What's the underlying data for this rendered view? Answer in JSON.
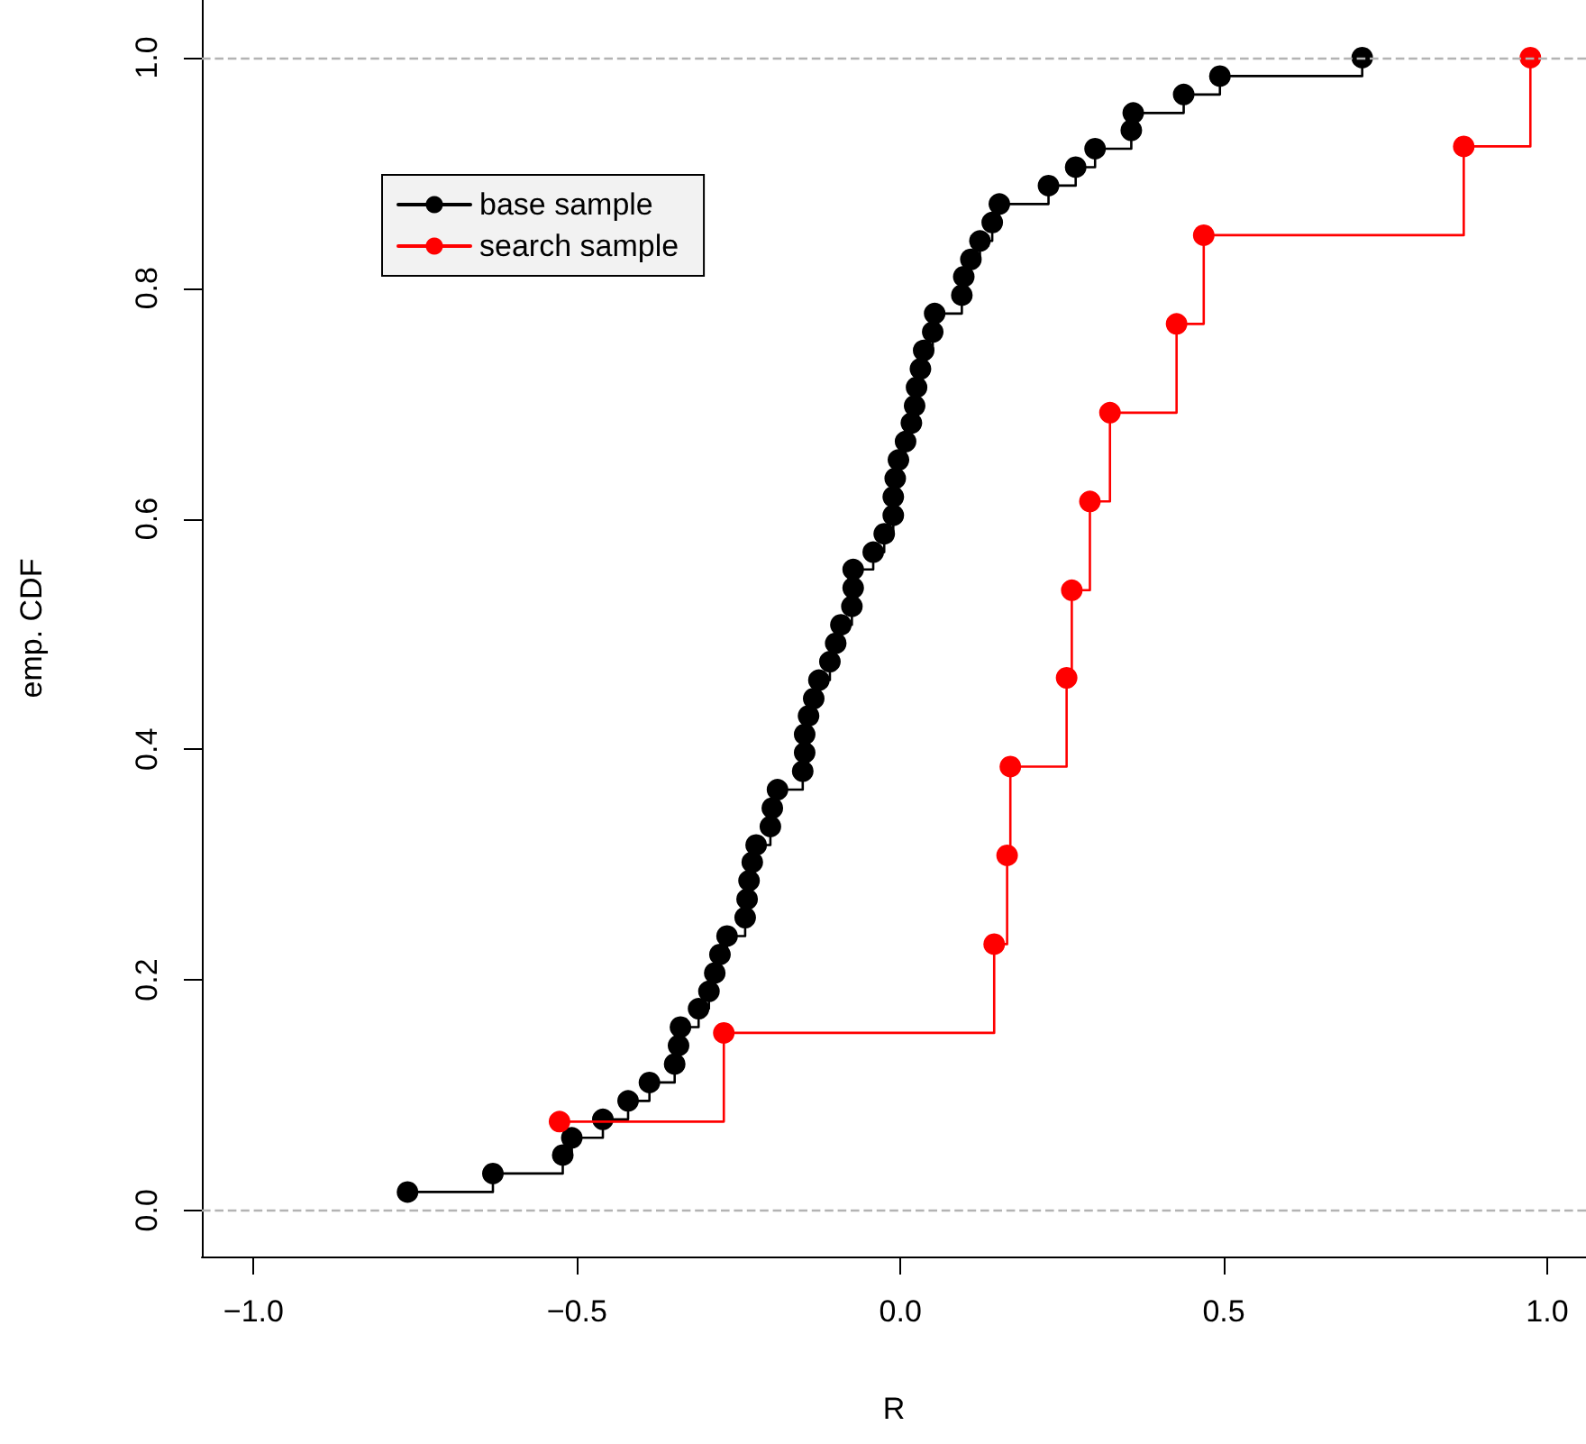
{
  "chart_data": {
    "type": "step",
    "xlabel": "R",
    "ylabel": "emp. CDF",
    "xlim": [
      -1.08,
      1.06
    ],
    "ylim": [
      -0.04,
      1.05
    ],
    "xticks": [
      {
        "value": -1,
        "label": "−1.0"
      },
      {
        "value": -0.5,
        "label": "−0.5"
      },
      {
        "value": 0,
        "label": "0.0"
      },
      {
        "value": 0.5,
        "label": "0.5"
      },
      {
        "value": 1,
        "label": "1.0"
      }
    ],
    "yticks": [
      {
        "value": 0,
        "label": "0.0"
      },
      {
        "value": 0.2,
        "label": "0.2"
      },
      {
        "value": 0.4,
        "label": "0.4"
      },
      {
        "value": 0.6,
        "label": "0.6"
      },
      {
        "value": 0.8,
        "label": "0.8"
      },
      {
        "value": 1,
        "label": "1.0"
      }
    ],
    "grid": false,
    "legend": "top left",
    "marker": "circle",
    "line_style": "solid",
    "ref_lines": [
      {
        "axis": "y",
        "value": 0,
        "color": "#b3b3b3",
        "line_style": "dashed"
      },
      {
        "axis": "y",
        "value": 1,
        "color": "#b3b3b3",
        "line_style": "dashed"
      }
    ],
    "series": [
      {
        "name": "base sample",
        "color": "#000000",
        "x": [
          -0.762,
          -0.63,
          -0.522,
          -0.508,
          -0.46,
          -0.421,
          -0.388,
          -0.349,
          -0.343,
          -0.34,
          -0.312,
          -0.296,
          -0.287,
          -0.279,
          -0.268,
          -0.24,
          -0.237,
          -0.234,
          -0.229,
          -0.223,
          -0.201,
          -0.198,
          -0.19,
          -0.151,
          -0.148,
          -0.148,
          -0.142,
          -0.134,
          -0.126,
          -0.109,
          -0.1,
          -0.092,
          -0.075,
          -0.073,
          -0.073,
          -0.042,
          -0.025,
          -0.011,
          -0.011,
          -0.008,
          -0.003,
          0.008,
          0.017,
          0.022,
          0.025,
          0.031,
          0.036,
          0.05,
          0.053,
          0.095,
          0.098,
          0.109,
          0.123,
          0.142,
          0.153,
          0.229,
          0.271,
          0.301,
          0.357,
          0.36,
          0.438,
          0.494,
          0.714
        ],
        "values": [
          0.016,
          0.032,
          0.048,
          0.063,
          0.079,
          0.095,
          0.111,
          0.127,
          0.143,
          0.159,
          0.175,
          0.19,
          0.206,
          0.222,
          0.238,
          0.254,
          0.27,
          0.286,
          0.302,
          0.317,
          0.333,
          0.349,
          0.365,
          0.381,
          0.397,
          0.413,
          0.429,
          0.444,
          0.46,
          0.476,
          0.492,
          0.508,
          0.524,
          0.54,
          0.556,
          0.571,
          0.587,
          0.603,
          0.619,
          0.635,
          0.651,
          0.667,
          0.683,
          0.698,
          0.714,
          0.73,
          0.746,
          0.762,
          0.778,
          0.794,
          0.81,
          0.825,
          0.841,
          0.857,
          0.873,
          0.889,
          0.905,
          0.921,
          0.937,
          0.952,
          0.968,
          0.984,
          1.0
        ]
      },
      {
        "name": "search sample",
        "color": "#ff0000",
        "x": [
          -0.527,
          -0.273,
          0.145,
          0.165,
          0.17,
          0.257,
          0.265,
          0.293,
          0.324,
          0.427,
          0.469,
          0.871,
          0.974
        ],
        "values": [
          0.077,
          0.154,
          0.231,
          0.308,
          0.385,
          0.462,
          0.538,
          0.615,
          0.692,
          0.769,
          0.846,
          0.923,
          1.0
        ]
      }
    ]
  }
}
